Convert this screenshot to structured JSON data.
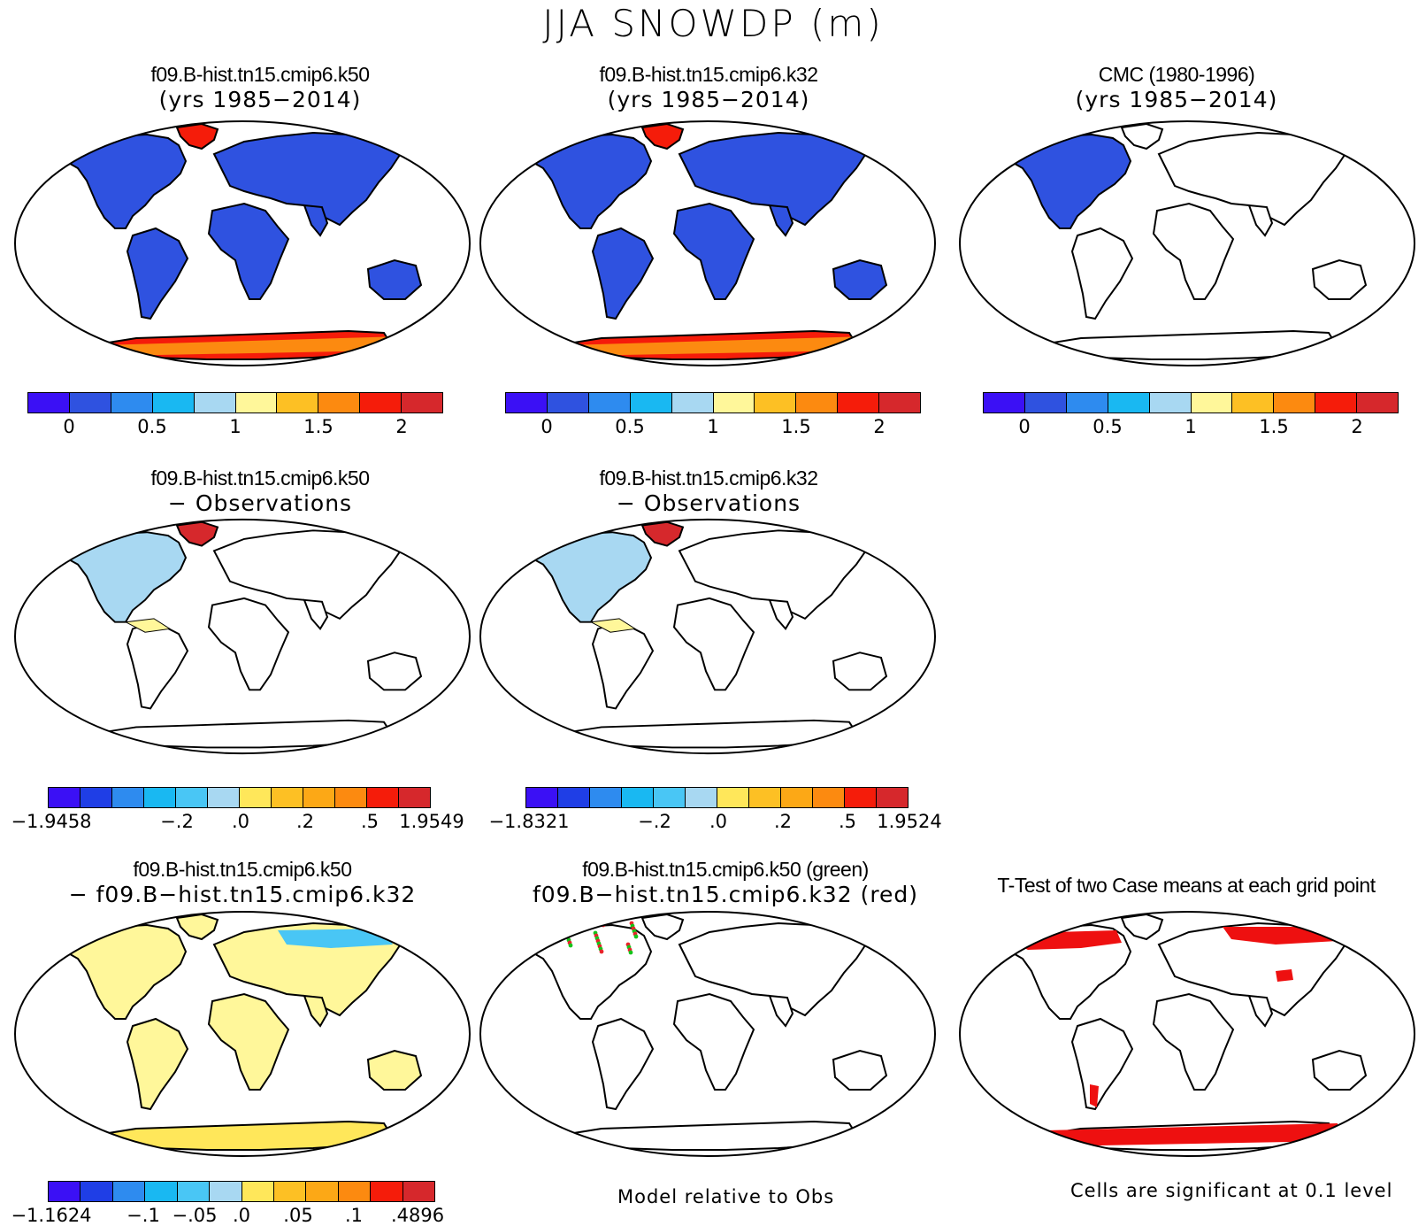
{
  "title": "JJA SNOWDP (m)",
  "palette_abs": [
    "#3b10f5",
    "#2f52e0",
    "#2e8bef",
    "#19b8f2",
    "#a8d8f2",
    "#fff79a",
    "#fdc024",
    "#fc8a10",
    "#f51c0a",
    "#d6282c"
  ],
  "palette_diff": [
    "#3b10f5",
    "#1f3ee6",
    "#2f66e3",
    "#2e8bef",
    "#19b8f2",
    "#49c6f5",
    "#a8d8f2",
    "#fff79a",
    "#ffe75a",
    "#fdc024",
    "#fca816",
    "#fc8a10",
    "#f75a14",
    "#f51c0a",
    "#d6282c"
  ],
  "panels": {
    "p1": {
      "line1": "f09.B-hist.tn15.cmip6.k50",
      "line2": "(yrs 1985−2014)",
      "fill": "abs",
      "land_color": "#2f52e0"
    },
    "p2": {
      "line1": "f09.B-hist.tn15.cmip6.k32",
      "line2": "(yrs 1985−2014)",
      "fill": "abs",
      "land_color": "#2f52e0"
    },
    "p3": {
      "line1": "CMC (1980-1996)",
      "line2": "(yrs 1985−2014)",
      "fill": "obs",
      "land_color": "#2f52e0"
    },
    "p4": {
      "line1": "f09.B-hist.tn15.cmip6.k50",
      "line2": "− Observations",
      "fill": "diff"
    },
    "p5": {
      "line1": "f09.B-hist.tn15.cmip6.k32",
      "line2": "− Observations",
      "fill": "diff"
    },
    "p7": {
      "line1": "f09.B-hist.tn15.cmip6.k50",
      "line2": "− f09.B−hist.tn15.cmip6.k32",
      "fill": "casediff"
    },
    "p8": {
      "line1": "f09.B-hist.tn15.cmip6.k50 (green)",
      "line2": "f09.B−hist.tn15.cmip6.k32 (red)",
      "fill": "rel"
    },
    "p9": {
      "line1": "T-Test of two Case means at each grid point",
      "line2": "",
      "fill": "ttest"
    }
  },
  "colorbars": {
    "abs": {
      "labels": [
        "0",
        "0.5",
        "1",
        "1.5",
        "2"
      ]
    },
    "diff1": {
      "labels": [
        "−1.9458",
        "−.2",
        ".0",
        ".2",
        ".5",
        "1.9549"
      ]
    },
    "diff2": {
      "labels": [
        "−1.8321",
        "−.2",
        ".0",
        ".2",
        ".5",
        "1.9524"
      ]
    },
    "casediff": {
      "labels": [
        "−1.1624",
        "−.1",
        "−.05",
        ".0",
        ".05",
        ".1",
        ".4896"
      ]
    }
  },
  "notes": {
    "model_rel": "Model relative to Obs",
    "significance": "Cells are significant at 0.1 level"
  }
}
